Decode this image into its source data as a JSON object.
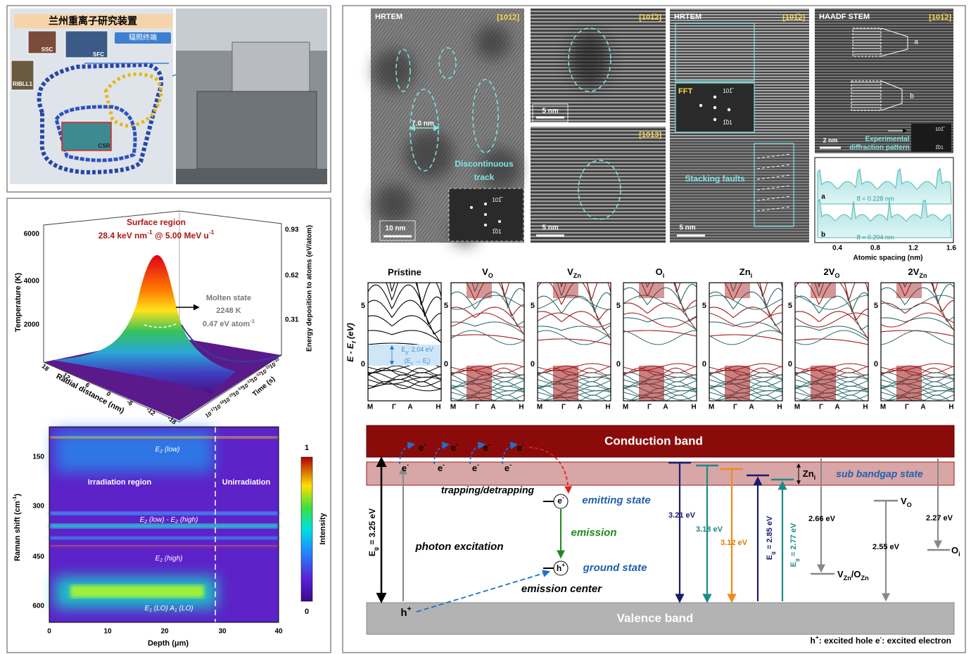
{
  "facility": {
    "title": "兰州重离子研究装置",
    "labels": [
      "SSC",
      "SFC",
      "辐照终端",
      "RIBLL1",
      "CSR"
    ]
  },
  "thermal_spike": {
    "title": "Surface region",
    "condition": [
      {
        "text": "28.4 keV nm"
      },
      {
        "sup": "-1"
      },
      {
        "text": " @ 5.00 MeV u"
      },
      {
        "sup": "-1"
      }
    ],
    "molten_state": "Molten state",
    "temperature": "2248 K",
    "energy": [
      {
        "text": "0.47 eV atom"
      },
      {
        "sup": "-1"
      }
    ],
    "z_label": "Temperature (K)",
    "z_ticks": [
      "2000",
      "4000",
      "6000"
    ],
    "z2_label": "Energy deposition to atoms (eV/atom)",
    "z2_ticks": [
      "0.31",
      "0.62",
      "0.93"
    ],
    "radial_label": "Radial distance (nm)",
    "radial_ticks": [
      "18",
      "12",
      "6",
      "0",
      "-6",
      "-12",
      "-18"
    ],
    "time_label": "Time (s)",
    "time_ticks": [
      [
        {
          "text": "10"
        },
        {
          "sup": "-17"
        }
      ],
      [
        {
          "text": "10"
        },
        {
          "sup": "-16"
        }
      ],
      [
        {
          "text": "10"
        },
        {
          "sup": "-15"
        }
      ],
      [
        {
          "text": "10"
        },
        {
          "sup": "-14"
        }
      ],
      [
        {
          "text": "10"
        },
        {
          "sup": "-13"
        }
      ],
      [
        {
          "text": "10"
        },
        {
          "sup": "-12"
        }
      ],
      [
        {
          "text": "10"
        },
        {
          "sup": "-11"
        }
      ],
      [
        {
          "text": "10"
        },
        {
          "sup": "-10"
        }
      ]
    ]
  },
  "raman": {
    "y_label": [
      {
        "text": "Raman shift (cm"
      },
      {
        "sup": "-1"
      },
      {
        "text": ")"
      }
    ],
    "y_ticks": [
      "150",
      "300",
      "450",
      "600"
    ],
    "x_label": "Depth (μm)",
    "x_ticks": [
      "0",
      "10",
      "20",
      "30",
      "40"
    ],
    "colorbar_label": "Intensity",
    "colorbar_ticks": [
      "1",
      "0"
    ],
    "irradiation": "Irradiation region",
    "unirradiation": "Unirradiation",
    "peaks": [
      [
        {
          "text": "E"
        },
        {
          "sub": "2"
        },
        {
          "text": " (low)"
        }
      ],
      [
        {
          "text": "E"
        },
        {
          "sub": "2"
        },
        {
          "text": " (low) - E"
        },
        {
          "sub": "2"
        },
        {
          "text": " (high)"
        }
      ],
      [
        {
          "text": "E"
        },
        {
          "sub": "2"
        },
        {
          "text": " (high)"
        }
      ],
      [
        {
          "text": "E"
        },
        {
          "sub": "1"
        },
        {
          "text": " (LO)   A"
        },
        {
          "sub": "1"
        },
        {
          "text": " (LO)"
        }
      ]
    ]
  },
  "tem": {
    "hrtem": "HRTEM",
    "zone": "[101̅2]",
    "zone2": "[101̅3]",
    "haadf": "HAADF STEM",
    "scale_10": "10 nm",
    "scale_5": "5 nm",
    "scale_2": "2 nm",
    "width": "7.0 nm",
    "track": [
      "Discontinuous",
      "track"
    ],
    "spots": [
      "101̅",
      "1̅01"
    ],
    "fft": "FFT",
    "stacking": "Stacking faults",
    "a": "a",
    "b": "b",
    "pattern": [
      "Experimental",
      "diffraction pattern"
    ],
    "profile": {
      "d_a": "d̅ = 0.228 nm",
      "d_b": "d̅ = 0.204 nm",
      "x_ticks": [
        "0.4",
        "0.8",
        "1.2",
        "1.6"
      ],
      "x_label": "Atomic spacing (nm)"
    }
  },
  "bands": {
    "y_label": [
      {
        "text": "E - E"
      },
      {
        "sub": "f"
      },
      {
        "text": " (eV)"
      }
    ],
    "y_ticks": [
      "0",
      "5"
    ],
    "k_labels": [
      "M",
      "Γ",
      "A",
      "H"
    ],
    "gap": [
      {
        "text": "E"
      },
      {
        "sub": "g"
      },
      {
        "text": ": 2.04 eV"
      }
    ],
    "transition": [
      {
        "text": "(E"
      },
      {
        "sub": "c"
      },
      {
        "text": " → E"
      },
      {
        "sub": "i"
      },
      {
        "text": ")"
      }
    ],
    "panels": [
      "Pristine",
      [
        {
          "text": "V"
        },
        {
          "sub": "O"
        }
      ],
      [
        {
          "text": "V"
        },
        {
          "sub": "Zn"
        }
      ],
      [
        {
          "text": "O"
        },
        {
          "sub": "i"
        }
      ],
      [
        {
          "text": "Zn"
        },
        {
          "sub": "i"
        }
      ],
      [
        {
          "text": "2V"
        },
        {
          "sub": "O"
        }
      ],
      [
        {
          "text": "2V"
        },
        {
          "sub": "Zn"
        }
      ]
    ]
  },
  "diagram": {
    "conduction": "Conduction band",
    "subgap": "sub bandgap state",
    "valence": "Valence band",
    "electron": [
      {
        "text": "e"
      },
      {
        "sup": "-"
      }
    ],
    "hole": [
      {
        "text": "h"
      },
      {
        "sup": "+"
      }
    ],
    "trapping": "trapping/detrapping",
    "emitting": "emitting state",
    "emission": "emission",
    "ground": "ground state",
    "center": "emission center",
    "photon": "photon excitation",
    "eg": [
      {
        "text": "E"
      },
      {
        "sub": "g"
      },
      {
        "text": " = 3.25 eV"
      }
    ],
    "transitions": [
      "3.21 eV",
      "3.18 eV",
      "3.12 eV"
    ],
    "eg_285": [
      {
        "text": "E"
      },
      {
        "sub": "g"
      },
      {
        "text": " = 2.85 eV"
      }
    ],
    "eg_277": [
      {
        "text": "E"
      },
      {
        "sub": "g"
      },
      {
        "text": " = 2.77 eV"
      }
    ],
    "zni": [
      {
        "text": "Zn"
      },
      {
        "sub": "i"
      }
    ],
    "e266": "2.66 eV",
    "vzn": [
      {
        "text": "V"
      },
      {
        "sub": "Zn"
      },
      {
        "text": "/O"
      },
      {
        "sub": "Zn"
      }
    ],
    "e255": "2.55 eV",
    "vo": [
      {
        "text": "V"
      },
      {
        "sub": "O"
      }
    ],
    "e227": "2.27 eV",
    "oi": [
      {
        "text": "O"
      },
      {
        "sub": "i"
      }
    ],
    "legend": [
      {
        "text": "h"
      },
      {
        "sup": "+"
      },
      {
        "text": ": excited hole   e"
      },
      {
        "sup": "-"
      },
      {
        "text": ": excited electron"
      }
    ]
  }
}
